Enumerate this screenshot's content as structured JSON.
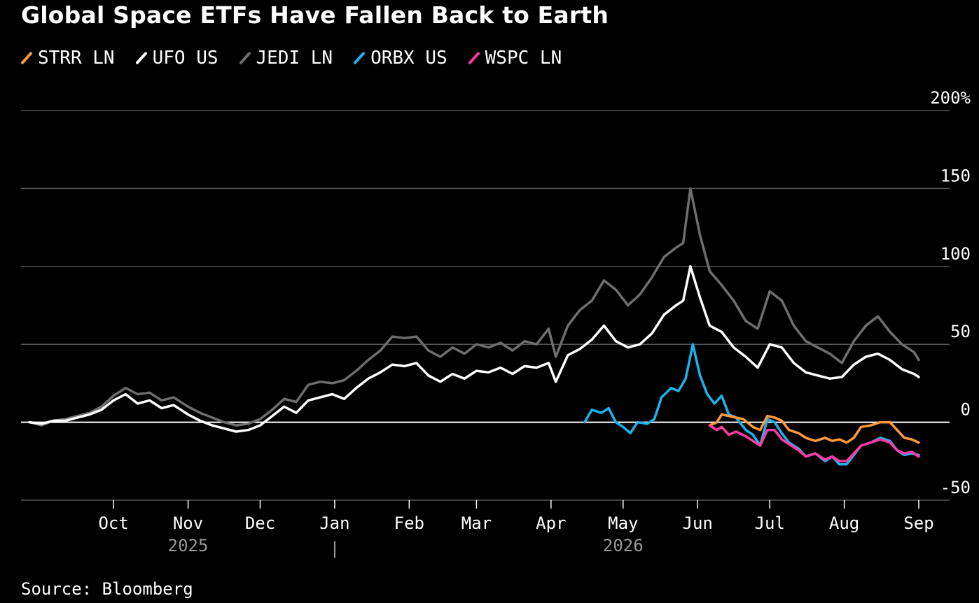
{
  "title": "Global Space ETFs Have Fallen Back to Earth",
  "source": "Source: Bloomberg",
  "colors": {
    "background": "#000000",
    "grid": "#555555",
    "zero_line": "#ffffff",
    "STRR LN": "#ff9a3c",
    "UFO US": "#ffffff",
    "JEDI LN": "#6e6e6e",
    "ORBX US": "#1bb3ee",
    "WSPC LN": "#ff3aa4"
  },
  "chart_data": {
    "type": "line",
    "title": "Global Space ETFs Have Fallen Back to Earth",
    "xlabel": "",
    "ylabel": "",
    "x_range": [
      "2025-08-27",
      "2026-09-01"
    ],
    "ylim": [
      -50,
      200
    ],
    "y_ticks": [
      "-50",
      "0",
      "50",
      "100",
      "150",
      "200%"
    ],
    "y_tick_values": [
      -50,
      0,
      50,
      100,
      150,
      200
    ],
    "x_ticks": [
      {
        "label": "Oct",
        "date": "2025-10-01"
      },
      {
        "label": "Nov",
        "date": "2025-11-01"
      },
      {
        "label": "Dec",
        "date": "2025-12-01"
      },
      {
        "label": "Jan",
        "date": "2026-01-01"
      },
      {
        "label": "Feb",
        "date": "2026-02-01"
      },
      {
        "label": "Mar",
        "date": "2026-03-01"
      },
      {
        "label": "Apr",
        "date": "2026-04-01"
      },
      {
        "label": "May",
        "date": "2026-05-01"
      },
      {
        "label": "Jun",
        "date": "2026-06-01"
      },
      {
        "label": "Jul",
        "date": "2026-07-01"
      },
      {
        "label": "Aug",
        "date": "2026-08-01"
      },
      {
        "label": "Sep",
        "date": "2026-09-01"
      }
    ],
    "year_labels": [
      {
        "label": "2025",
        "date": "2025-11-01"
      },
      {
        "label": "2026",
        "date": "2026-05-01"
      }
    ],
    "year_divider": "|",
    "grid": true,
    "legend_position": "top-left",
    "series": [
      {
        "name": "STRR LN",
        "color": "#ff9a3c",
        "points": [
          [
            "2026-06-06",
            -2
          ],
          [
            "2026-06-09",
            0
          ],
          [
            "2026-06-11",
            5
          ],
          [
            "2026-06-14",
            4
          ],
          [
            "2026-06-17",
            3
          ],
          [
            "2026-06-20",
            2
          ],
          [
            "2026-06-24",
            -3
          ],
          [
            "2026-06-27",
            -5
          ],
          [
            "2026-06-30",
            4
          ],
          [
            "2026-07-03",
            3
          ],
          [
            "2026-07-06",
            1
          ],
          [
            "2026-07-09",
            -5
          ],
          [
            "2026-07-13",
            -7
          ],
          [
            "2026-07-16",
            -10
          ],
          [
            "2026-07-20",
            -12
          ],
          [
            "2026-07-24",
            -10
          ],
          [
            "2026-07-27",
            -12
          ],
          [
            "2026-07-30",
            -11
          ],
          [
            "2026-08-02",
            -13
          ],
          [
            "2026-08-05",
            -10
          ],
          [
            "2026-08-08",
            -3
          ],
          [
            "2026-08-12",
            -2
          ],
          [
            "2026-08-16",
            0
          ],
          [
            "2026-08-20",
            0
          ],
          [
            "2026-08-23",
            -5
          ],
          [
            "2026-08-26",
            -10
          ],
          [
            "2026-08-29",
            -11
          ],
          [
            "2026-09-01",
            -13
          ]
        ]
      },
      {
        "name": "UFO US",
        "color": "#ffffff",
        "points": [
          [
            "2025-08-27",
            0
          ],
          [
            "2025-09-01",
            -1
          ],
          [
            "2025-09-06",
            1
          ],
          [
            "2025-09-11",
            1
          ],
          [
            "2025-09-16",
            3
          ],
          [
            "2025-09-21",
            5
          ],
          [
            "2025-09-26",
            8
          ],
          [
            "2025-10-01",
            14
          ],
          [
            "2025-10-06",
            18
          ],
          [
            "2025-10-11",
            12
          ],
          [
            "2025-10-16",
            14
          ],
          [
            "2025-10-21",
            9
          ],
          [
            "2025-10-26",
            11
          ],
          [
            "2025-11-01",
            5
          ],
          [
            "2025-11-06",
            1
          ],
          [
            "2025-11-11",
            -2
          ],
          [
            "2025-11-16",
            -4
          ],
          [
            "2025-11-21",
            -6
          ],
          [
            "2025-11-26",
            -5
          ],
          [
            "2025-12-01",
            -2
          ],
          [
            "2025-12-06",
            4
          ],
          [
            "2025-12-11",
            10
          ],
          [
            "2025-12-16",
            6
          ],
          [
            "2025-12-21",
            14
          ],
          [
            "2025-12-26",
            16
          ],
          [
            "2025-12-31",
            18
          ],
          [
            "2026-01-05",
            15
          ],
          [
            "2026-01-10",
            22
          ],
          [
            "2026-01-15",
            28
          ],
          [
            "2026-01-20",
            32
          ],
          [
            "2026-01-25",
            37
          ],
          [
            "2026-01-30",
            36
          ],
          [
            "2026-02-04",
            38
          ],
          [
            "2026-02-09",
            30
          ],
          [
            "2026-02-14",
            26
          ],
          [
            "2026-02-19",
            31
          ],
          [
            "2026-02-24",
            28
          ],
          [
            "2026-03-01",
            33
          ],
          [
            "2026-03-06",
            32
          ],
          [
            "2026-03-11",
            35
          ],
          [
            "2026-03-16",
            31
          ],
          [
            "2026-03-21",
            36
          ],
          [
            "2026-03-26",
            35
          ],
          [
            "2026-03-31",
            38
          ],
          [
            "2026-04-03",
            26
          ],
          [
            "2026-04-08",
            43
          ],
          [
            "2026-04-13",
            47
          ],
          [
            "2026-04-18",
            53
          ],
          [
            "2026-04-23",
            62
          ],
          [
            "2026-04-28",
            52
          ],
          [
            "2026-05-03",
            48
          ],
          [
            "2026-05-08",
            50
          ],
          [
            "2026-05-13",
            57
          ],
          [
            "2026-05-18",
            69
          ],
          [
            "2026-05-23",
            75
          ],
          [
            "2026-05-26",
            78
          ],
          [
            "2026-05-29",
            100
          ],
          [
            "2026-06-02",
            80
          ],
          [
            "2026-06-06",
            62
          ],
          [
            "2026-06-11",
            58
          ],
          [
            "2026-06-16",
            48
          ],
          [
            "2026-06-21",
            42
          ],
          [
            "2026-06-26",
            35
          ],
          [
            "2026-07-01",
            50
          ],
          [
            "2026-07-06",
            48
          ],
          [
            "2026-07-11",
            38
          ],
          [
            "2026-07-16",
            32
          ],
          [
            "2026-07-21",
            30
          ],
          [
            "2026-07-26",
            28
          ],
          [
            "2026-07-31",
            29
          ],
          [
            "2026-08-05",
            37
          ],
          [
            "2026-08-10",
            42
          ],
          [
            "2026-08-15",
            44
          ],
          [
            "2026-08-20",
            40
          ],
          [
            "2026-08-25",
            34
          ],
          [
            "2026-08-30",
            31
          ],
          [
            "2026-09-01",
            29
          ]
        ]
      },
      {
        "name": "JEDI LN",
        "color": "#6e6e6e",
        "points": [
          [
            "2025-08-27",
            0
          ],
          [
            "2025-09-01",
            -2
          ],
          [
            "2025-09-06",
            1
          ],
          [
            "2025-09-11",
            2
          ],
          [
            "2025-09-16",
            4
          ],
          [
            "2025-09-21",
            6
          ],
          [
            "2025-09-26",
            10
          ],
          [
            "2025-10-01",
            17
          ],
          [
            "2025-10-06",
            22
          ],
          [
            "2025-10-11",
            18
          ],
          [
            "2025-10-16",
            19
          ],
          [
            "2025-10-21",
            14
          ],
          [
            "2025-10-26",
            16
          ],
          [
            "2025-11-01",
            10
          ],
          [
            "2025-11-06",
            6
          ],
          [
            "2025-11-11",
            3
          ],
          [
            "2025-11-16",
            0
          ],
          [
            "2025-11-21",
            -2
          ],
          [
            "2025-11-26",
            -1
          ],
          [
            "2025-12-01",
            2
          ],
          [
            "2025-12-06",
            8
          ],
          [
            "2025-12-11",
            15
          ],
          [
            "2025-12-16",
            13
          ],
          [
            "2025-12-21",
            24
          ],
          [
            "2025-12-26",
            26
          ],
          [
            "2025-12-31",
            25
          ],
          [
            "2026-01-05",
            27
          ],
          [
            "2026-01-10",
            33
          ],
          [
            "2026-01-15",
            40
          ],
          [
            "2026-01-20",
            46
          ],
          [
            "2026-01-25",
            55
          ],
          [
            "2026-01-30",
            54
          ],
          [
            "2026-02-04",
            55
          ],
          [
            "2026-02-09",
            46
          ],
          [
            "2026-02-14",
            42
          ],
          [
            "2026-02-19",
            48
          ],
          [
            "2026-02-24",
            44
          ],
          [
            "2026-03-01",
            50
          ],
          [
            "2026-03-06",
            48
          ],
          [
            "2026-03-11",
            51
          ],
          [
            "2026-03-16",
            46
          ],
          [
            "2026-03-21",
            52
          ],
          [
            "2026-03-26",
            50
          ],
          [
            "2026-03-31",
            60
          ],
          [
            "2026-04-03",
            42
          ],
          [
            "2026-04-08",
            62
          ],
          [
            "2026-04-13",
            72
          ],
          [
            "2026-04-18",
            78
          ],
          [
            "2026-04-23",
            91
          ],
          [
            "2026-04-28",
            85
          ],
          [
            "2026-05-03",
            75
          ],
          [
            "2026-05-08",
            82
          ],
          [
            "2026-05-13",
            93
          ],
          [
            "2026-05-18",
            106
          ],
          [
            "2026-05-23",
            112
          ],
          [
            "2026-05-26",
            115
          ],
          [
            "2026-05-29",
            150
          ],
          [
            "2026-06-02",
            120
          ],
          [
            "2026-06-06",
            97
          ],
          [
            "2026-06-11",
            88
          ],
          [
            "2026-06-16",
            78
          ],
          [
            "2026-06-21",
            65
          ],
          [
            "2026-06-26",
            60
          ],
          [
            "2026-07-01",
            84
          ],
          [
            "2026-07-06",
            78
          ],
          [
            "2026-07-11",
            62
          ],
          [
            "2026-07-16",
            52
          ],
          [
            "2026-07-21",
            48
          ],
          [
            "2026-07-26",
            44
          ],
          [
            "2026-07-31",
            38
          ],
          [
            "2026-08-05",
            52
          ],
          [
            "2026-08-10",
            62
          ],
          [
            "2026-08-15",
            68
          ],
          [
            "2026-08-20",
            58
          ],
          [
            "2026-08-25",
            50
          ],
          [
            "2026-08-30",
            45
          ],
          [
            "2026-09-01",
            40
          ]
        ]
      },
      {
        "name": "ORBX US",
        "color": "#1bb3ee",
        "points": [
          [
            "2026-04-15",
            0
          ],
          [
            "2026-04-18",
            8
          ],
          [
            "2026-04-22",
            6
          ],
          [
            "2026-04-25",
            9
          ],
          [
            "2026-04-28",
            0
          ],
          [
            "2026-05-01",
            -3
          ],
          [
            "2026-05-04",
            -7
          ],
          [
            "2026-05-07",
            0
          ],
          [
            "2026-05-11",
            -1
          ],
          [
            "2026-05-14",
            2
          ],
          [
            "2026-05-17",
            16
          ],
          [
            "2026-05-21",
            22
          ],
          [
            "2026-05-24",
            20
          ],
          [
            "2026-05-27",
            28
          ],
          [
            "2026-05-30",
            50
          ],
          [
            "2026-06-02",
            30
          ],
          [
            "2026-06-05",
            18
          ],
          [
            "2026-06-08",
            12
          ],
          [
            "2026-06-11",
            17
          ],
          [
            "2026-06-14",
            5
          ],
          [
            "2026-06-17",
            3
          ],
          [
            "2026-06-21",
            -5
          ],
          [
            "2026-06-24",
            -8
          ],
          [
            "2026-06-27",
            -15
          ],
          [
            "2026-06-30",
            2
          ],
          [
            "2026-07-03",
            0
          ],
          [
            "2026-07-06",
            -7
          ],
          [
            "2026-07-09",
            -13
          ],
          [
            "2026-07-13",
            -17
          ],
          [
            "2026-07-16",
            -22
          ],
          [
            "2026-07-20",
            -20
          ],
          [
            "2026-07-24",
            -25
          ],
          [
            "2026-07-27",
            -22
          ],
          [
            "2026-07-30",
            -27
          ],
          [
            "2026-08-02",
            -27
          ],
          [
            "2026-08-05",
            -21
          ],
          [
            "2026-08-08",
            -15
          ],
          [
            "2026-08-12",
            -13
          ],
          [
            "2026-08-16",
            -10
          ],
          [
            "2026-08-20",
            -12
          ],
          [
            "2026-08-23",
            -18
          ],
          [
            "2026-08-26",
            -21
          ],
          [
            "2026-08-29",
            -20
          ],
          [
            "2026-09-01",
            -21
          ]
        ]
      },
      {
        "name": "WSPC LN",
        "color": "#ff3aa4",
        "points": [
          [
            "2026-06-06",
            -2
          ],
          [
            "2026-06-09",
            -5
          ],
          [
            "2026-06-11",
            -3
          ],
          [
            "2026-06-14",
            -8
          ],
          [
            "2026-06-17",
            -6
          ],
          [
            "2026-06-21",
            -9
          ],
          [
            "2026-06-24",
            -12
          ],
          [
            "2026-06-27",
            -15
          ],
          [
            "2026-06-30",
            -5
          ],
          [
            "2026-07-03",
            -5
          ],
          [
            "2026-07-06",
            -11
          ],
          [
            "2026-07-09",
            -14
          ],
          [
            "2026-07-13",
            -18
          ],
          [
            "2026-07-16",
            -22
          ],
          [
            "2026-07-20",
            -20
          ],
          [
            "2026-07-24",
            -24
          ],
          [
            "2026-07-27",
            -22
          ],
          [
            "2026-07-30",
            -25
          ],
          [
            "2026-08-02",
            -25
          ],
          [
            "2026-08-05",
            -20
          ],
          [
            "2026-08-08",
            -15
          ],
          [
            "2026-08-12",
            -13
          ],
          [
            "2026-08-16",
            -11
          ],
          [
            "2026-08-20",
            -13
          ],
          [
            "2026-08-23",
            -18
          ],
          [
            "2026-08-26",
            -20
          ],
          [
            "2026-08-29",
            -19
          ],
          [
            "2026-09-01",
            -22
          ]
        ]
      }
    ]
  }
}
